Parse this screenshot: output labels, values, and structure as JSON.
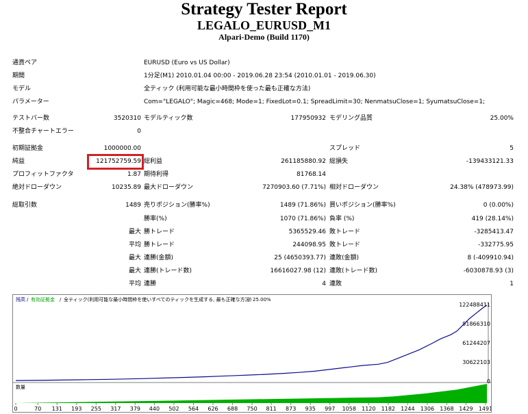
{
  "header": {
    "title": "Strategy Tester Report",
    "symbol": "LEGALO_EURUSD_M1",
    "broker": "Alpari-Demo (Build 1170)"
  },
  "info": [
    {
      "label": "通貨ペア",
      "value": "EURUSD (Euro vs US Dollar)"
    },
    {
      "label": "期間",
      "value": "1分足(M1) 2010.01.04 00:00 - 2019.06.28 23:54 (2010.01.01 - 2019.06.30)"
    },
    {
      "label": "モデル",
      "value": "全ティック (利用可能な最小時間枠を使った最も正確な方法)"
    },
    {
      "label": "パラメーター",
      "value": "Com=\"LEGALO\"; Magic=468; Mode=1; FixedLot=0.1; SpreadLimit=30; NenmatsuClose=1; SyumatsuClose=1;"
    }
  ],
  "bars": {
    "bars_label": "テストバー数",
    "bars_value": "3520310",
    "ticks_label": "モデルティック数",
    "ticks_value": "177950932",
    "quality_label": "モデリング品質",
    "quality_value": "25.00%",
    "errors_label": "不整合チャートエラー",
    "errors_value": "0"
  },
  "results": {
    "initial_deposit_label": "初期証拠金",
    "initial_deposit_value": "1000000.00",
    "spread_label": "スプレッド",
    "spread_value": "5",
    "net_profit_label": "純益",
    "net_profit_value": "121752759.59",
    "gross_profit_label": "総利益",
    "gross_profit_value": "261185880.92",
    "gross_loss_label": "総損失",
    "gross_loss_value": "-139433121.33",
    "profit_factor_label": "プロフィットファクタ",
    "profit_factor_value": "1.87",
    "expected_payoff_label": "期待利得",
    "expected_payoff_value": "81768.14",
    "abs_dd_label": "絶対ドローダウン",
    "abs_dd_value": "10235.89",
    "max_dd_label": "最大ドローダウン",
    "max_dd_value": "7270903.60 (7.71%)",
    "rel_dd_label": "相対ドローダウン",
    "rel_dd_value": "24.38% (478973.99)"
  },
  "trades": {
    "total_label": "総取引数",
    "total_value": "1489",
    "short_label": "売りポジション(勝率%)",
    "short_value": "1489 (71.86%)",
    "long_label": "買いポジション(勝率%)",
    "long_value": "0 (0.00%)",
    "win_rate_label": "勝率(%)",
    "win_rate_value": "1070 (71.86%)",
    "loss_rate_label": "負率 (%)",
    "loss_rate_value": "419 (28.14%)",
    "max_label": "最大",
    "avg_label": "平均",
    "largest_win_label": "勝トレード",
    "largest_win_value": "5365529.46",
    "largest_loss_label": "敗トレード",
    "largest_loss_value": "-3285413.47",
    "avg_win_label": "勝トレード",
    "avg_win_value": "244098.95",
    "avg_loss_label": "敗トレード",
    "avg_loss_value": "-332775.95",
    "max_consec_wins_label": "連勝(金額)",
    "max_consec_wins_value": "25 (4650393.77)",
    "max_consec_losses_label": "連敗(金額)",
    "max_consec_losses_value": "8 (-409910.94)",
    "max_consec_profit_label": "連勝(トレード数)",
    "max_consec_profit_value": "16616027.98 (12)",
    "max_consec_loss_label": "連敗(トレード数)",
    "max_consec_loss_value": "-6030878.93 (3)",
    "avg_consec_wins_label": "連勝",
    "avg_consec_wins_value": "4",
    "avg_consec_losses_label": "連敗",
    "avg_consec_losses_value": "1"
  },
  "chart_legend": {
    "balance": "残高",
    "sep1": "/",
    "equity": "有効証拠金",
    "sep2": "/",
    "model": "全ティック(利用可能な最小時間枠を使いすべてのティックを生成する, 最も正確な方法)",
    "sep3": "/",
    "quality": "25.00%"
  },
  "volume_label": "数量",
  "colors": {
    "balance": "#0a0a8c",
    "equity": "#00a000",
    "volume": "#00b000",
    "highlight": "#d32027"
  },
  "chart_data": {
    "type": "line",
    "y_ticks": [
      "122488411",
      "91866310",
      "61244207",
      "30622103",
      "0"
    ],
    "y_range": [
      0,
      122488411
    ],
    "x_ticks": [
      "0",
      "70",
      "131",
      "193",
      "255",
      "317",
      "379",
      "440",
      "502",
      "564",
      "626",
      "688",
      "750",
      "811",
      "873",
      "935",
      "997",
      "1058",
      "1120",
      "1182",
      "1244",
      "1306",
      "1368",
      "1429",
      "1491"
    ],
    "x_range": [
      0,
      1491
    ],
    "series": [
      {
        "x": [
          0,
          100,
          200,
          300,
          400,
          500,
          600,
          650,
          700,
          750,
          800,
          850,
          900,
          950,
          1000,
          1050,
          1100,
          1150,
          1180,
          1200,
          1220,
          1250,
          1280,
          1300,
          1320,
          1350,
          1380,
          1400,
          1420,
          1440,
          1460,
          1480,
          1500
        ],
        "y": [
          1000000,
          1500000,
          2200000,
          3000000,
          4000000,
          5500000,
          7000000,
          8000000,
          9000000,
          10000000,
          11000000,
          12500000,
          14000000,
          16000000,
          19000000,
          22000000,
          25000000,
          27000000,
          30000000,
          34000000,
          38000000,
          44000000,
          50000000,
          55000000,
          60000000,
          68000000,
          74000000,
          80000000,
          90000000,
          100000000,
          108000000,
          116000000,
          121752759
        ]
      }
    ],
    "volume": {
      "x": [
        0,
        1150,
        1200,
        1300,
        1400,
        1500
      ],
      "y": [
        0,
        0.3,
        0.35,
        0.5,
        0.7,
        1
      ]
    }
  }
}
